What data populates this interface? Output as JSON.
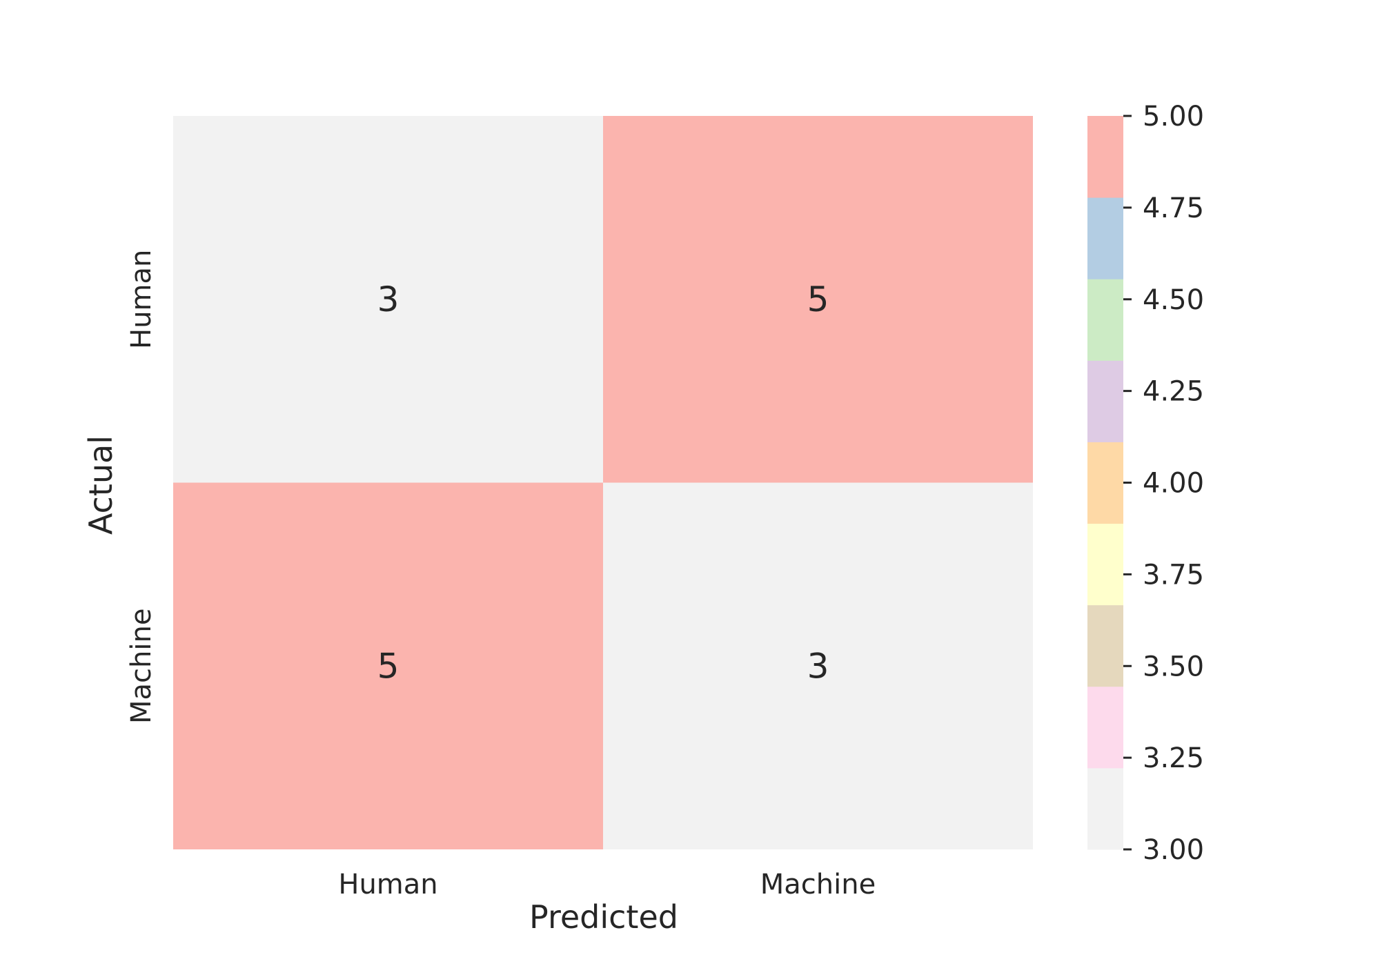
{
  "chart_data": {
    "type": "heatmap",
    "title": "",
    "xlabel": "Predicted",
    "ylabel": "Actual",
    "x_categories": [
      "Human",
      "Machine"
    ],
    "y_categories": [
      "Human",
      "Machine"
    ],
    "values": [
      [
        3,
        5
      ],
      [
        5,
        3
      ]
    ],
    "colorbar": {
      "vmin": 3.0,
      "vmax": 5.0,
      "ticks": [
        "3.00",
        "3.25",
        "3.50",
        "3.75",
        "4.00",
        "4.25",
        "4.50",
        "4.75",
        "5.00"
      ],
      "colormap": "Pastel1",
      "colors_low_to_high": [
        "#f2f2f2",
        "#fddaec",
        "#e5d8bd",
        "#ffffcc",
        "#fed9a6",
        "#decbe4",
        "#ccebc5",
        "#b3cde3",
        "#fbb4ae"
      ]
    },
    "grid": false
  }
}
